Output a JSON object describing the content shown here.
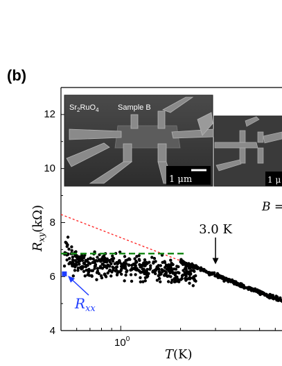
{
  "panel_label": "(b)",
  "chart_data": {
    "type": "scatter",
    "x_scale": "log",
    "xlim": [
      0.5,
      7.2
    ],
    "ylim": [
      4,
      13
    ],
    "yticks": [
      4,
      6,
      8,
      10,
      12
    ],
    "ytick_labels": [
      "4",
      "6",
      "8",
      "10",
      "12"
    ],
    "xtick_base": "10",
    "xtick_exp": "0",
    "xlabel_var": "T",
    "xlabel_unit": "(K)",
    "ylabel_var": "R",
    "ylabel_sub": "xy",
    "ylabel_unit": "(kΩ)",
    "partial_text": "B =",
    "inset": {
      "material_pre": "Sr",
      "material_sub1": "2",
      "material_mid": "RuO",
      "material_sub2": "4",
      "sample": "Sample B",
      "scalebar": "1 μm",
      "scalebar2": "1 μ"
    },
    "annotation_3k": {
      "label": "3.0 K",
      "x": 3.0,
      "y_tip": 6.3
    },
    "rxx_label_var": "R",
    "rxx_label_sub": "xx",
    "rxx_point": {
      "x": 0.52,
      "y": 6.1
    },
    "red_fit_line": {
      "x": [
        0.5,
        7.2
      ],
      "y": [
        8.3,
        5.0
      ]
    },
    "green_level_line": {
      "x": [
        0.5,
        2.1
      ],
      "y": [
        6.85,
        6.85
      ]
    },
    "scatter_seed": 42
  }
}
